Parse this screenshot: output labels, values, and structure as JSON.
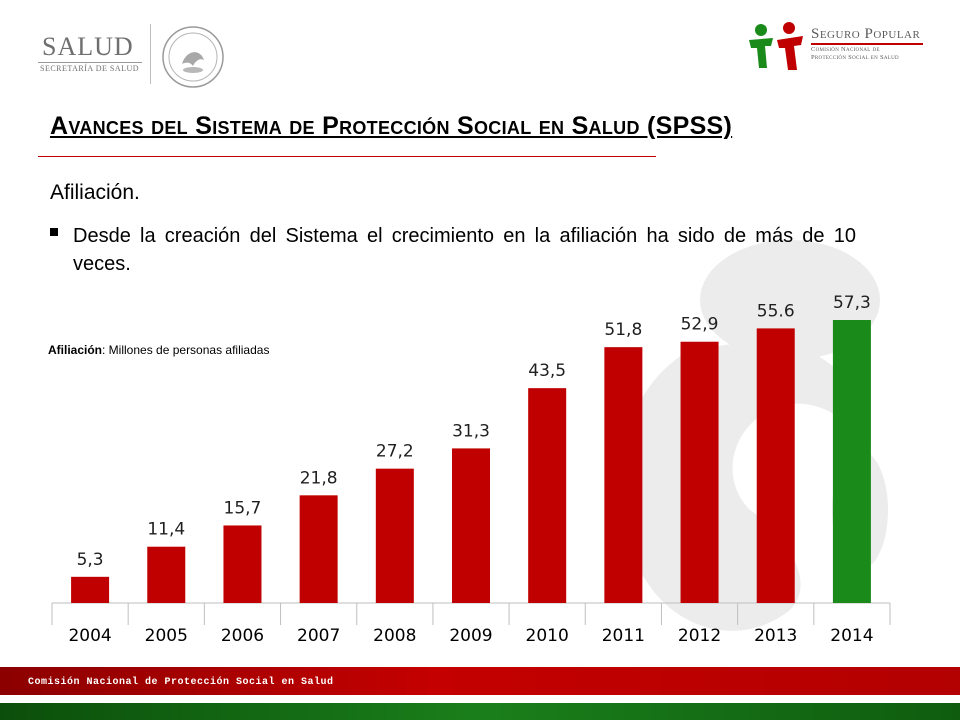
{
  "header": {
    "salud_logo": {
      "word": "SALUD",
      "subtitle": "SECRETARÍA DE SALUD"
    },
    "seguro_popular_logo": {
      "title": "Seguro Popular",
      "subtitle_line1": "Comisión Nacional de",
      "subtitle_line2": "Protección Social en Salud",
      "colors": {
        "green": "#1a8a1a",
        "red": "#c00000"
      }
    }
  },
  "title": "Avances del Sistema de Protección Social en Salud (SPSS)",
  "section": "Afiliación.",
  "bullet": "Desde la creación del Sistema el crecimiento en la afiliación ha sido de más de 10 veces.",
  "chart_note": {
    "label": "Afiliación",
    "text": ": Millones de personas afiliadas"
  },
  "chart_data": {
    "type": "bar",
    "categories": [
      "2004",
      "2005",
      "2006",
      "2007",
      "2008",
      "2009",
      "2010",
      "2011",
      "2012",
      "2013",
      "2014"
    ],
    "values": [
      5.3,
      11.4,
      15.7,
      21.8,
      27.2,
      31.3,
      43.5,
      51.8,
      52.9,
      55.6,
      57.3
    ],
    "data_labels": [
      "5,3",
      "11,4",
      "15,7",
      "21,8",
      "27,2",
      "31,3",
      "43,5",
      "51,8",
      "52,9",
      "55.6",
      "57,3"
    ],
    "ylim": [
      0,
      57.3
    ],
    "colors": {
      "default": "#c00000",
      "highlight": "#1a8a1a"
    },
    "highlight_index": 10,
    "grid": false,
    "legend": "none"
  },
  "footer": {
    "text": "Comisión Nacional de Protección Social en Salud"
  }
}
